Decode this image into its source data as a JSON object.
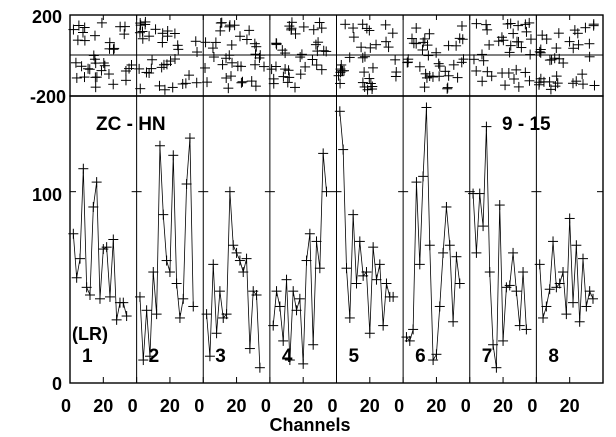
{
  "chart_data": {
    "type": "line",
    "title_left": "ZC - HN",
    "title_right": "9 - 15",
    "xlabel": "Channels",
    "x_tick_labels": [
      "0",
      "20"
    ],
    "x_range": [
      0,
      40
    ],
    "upper_panel": {
      "y_tick_labels": [
        "200",
        "-200"
      ],
      "ylim": [
        -200,
        200
      ],
      "points_per_panel": 36
    },
    "lower_panel": {
      "y_tick_labels": [
        "100",
        "0"
      ],
      "ylim": [
        0,
        150
      ],
      "x_channels": [
        2,
        4,
        6,
        8,
        10,
        12,
        14,
        16,
        18,
        20,
        22,
        24,
        26,
        28,
        30,
        32,
        34
      ],
      "note_label": "(LR)"
    },
    "panels": [
      {
        "label": "1",
        "values": [
          78,
          55,
          65,
          112,
          50,
          46,
          92,
          105,
          44,
          70,
          71,
          45,
          75,
          33,
          42,
          42,
          35
        ]
      },
      {
        "label": "2",
        "values": [
          45,
          12,
          38,
          14,
          58,
          36,
          124,
          88,
          64,
          58,
          119,
          52,
          34,
          44,
          104,
          128,
          40
        ]
      },
      {
        "label": "3",
        "values": [
          36,
          14,
          62,
          26,
          48,
          34,
          36,
          100,
          72,
          68,
          64,
          58,
          65,
          18,
          48,
          46,
          8
        ]
      },
      {
        "label": "4",
        "values": [
          30,
          48,
          40,
          22,
          54,
          12,
          48,
          38,
          44,
          10,
          64,
          78,
          20,
          74,
          60,
          120,
          100
        ]
      },
      {
        "label": "5",
        "values": [
          142,
          122,
          60,
          34,
          88,
          52,
          74,
          56,
          58,
          26,
          71,
          54,
          62,
          30,
          52,
          45,
          45
        ]
      },
      {
        "label": "6",
        "values": [
          24,
          22,
          28,
          105,
          62,
          108,
          144,
          72,
          12,
          15,
          40,
          68,
          92,
          72,
          32,
          66,
          52
        ]
      },
      {
        "label": "7",
        "values": [
          99,
          68,
          99,
          82,
          134,
          58,
          20,
          8,
          93,
          22,
          50,
          51,
          68,
          48,
          30,
          58,
          28
        ]
      },
      {
        "label": "8",
        "values": [
          62,
          34,
          40,
          49,
          74,
          50,
          52,
          58,
          36,
          86,
          42,
          72,
          32,
          65,
          40,
          48,
          44
        ]
      }
    ]
  }
}
